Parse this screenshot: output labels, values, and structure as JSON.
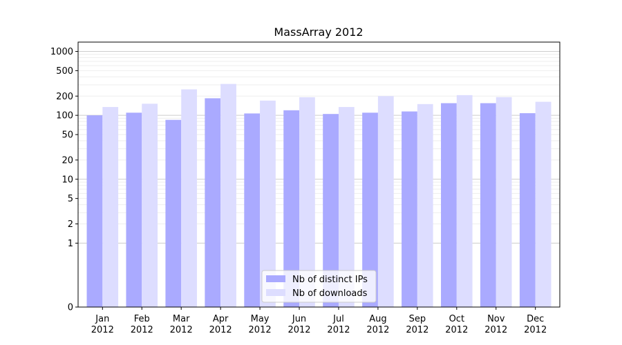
{
  "chart_data": {
    "type": "bar",
    "title": "MassArray 2012",
    "xlabel": "",
    "ylabel": "",
    "y_scale": "symlog",
    "ylim": [
      0,
      1400
    ],
    "y_ticks": [
      0,
      1,
      2,
      5,
      10,
      20,
      50,
      100,
      200,
      500,
      1000
    ],
    "grid": true,
    "legend_position": "lower center",
    "categories": [
      "Jan\n2012",
      "Feb\n2012",
      "Mar\n2012",
      "Apr\n2012",
      "May\n2012",
      "Jun\n2012",
      "Jul\n2012",
      "Aug\n2012",
      "Sep\n2012",
      "Oct\n2012",
      "Nov\n2012",
      "Dec\n2012"
    ],
    "series": [
      {
        "name": "Nb of distinct IPs",
        "color": "#aaaaff",
        "values": [
          100,
          110,
          85,
          185,
          107,
          120,
          105,
          110,
          115,
          155,
          155,
          108
        ]
      },
      {
        "name": "Nb of downloads",
        "color": "#ddddff",
        "values": [
          135,
          152,
          255,
          310,
          170,
          192,
          135,
          200,
          150,
          207,
          193,
          163
        ]
      }
    ]
  }
}
